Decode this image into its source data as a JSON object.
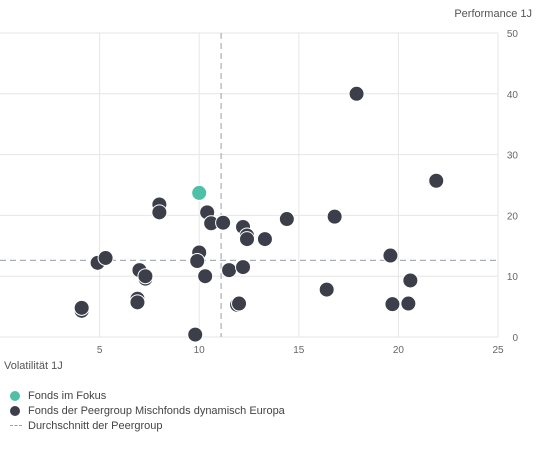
{
  "chart_data": {
    "type": "scatter",
    "title": "",
    "xlabel": "Volatilität 1J",
    "ylabel": "Performance 1J",
    "xlim": [
      0,
      25
    ],
    "ylim": [
      0,
      50
    ],
    "xticks": [
      "5",
      "10",
      "15",
      "20",
      "25"
    ],
    "yticks": [
      "0",
      "10",
      "20",
      "30",
      "40",
      "50"
    ],
    "grid": true,
    "legend_position": "bottom-left",
    "colors": {
      "focus": "#4dc0a5",
      "peer": "#3c3f4a",
      "average": "#a9b0b9",
      "grid": "#e6e6e6"
    },
    "series": [
      {
        "name": "Fonds im Fokus",
        "points": [
          {
            "x": 10.0,
            "y": 23.7
          }
        ]
      },
      {
        "name": "Fonds der Peergroup Mischfonds dynamisch Europa",
        "points": [
          {
            "x": 17.9,
            "y": 40.0
          },
          {
            "x": 21.9,
            "y": 25.7
          },
          {
            "x": 8.0,
            "y": 21.8
          },
          {
            "x": 8.0,
            "y": 20.5
          },
          {
            "x": 10.4,
            "y": 20.5
          },
          {
            "x": 10.6,
            "y": 18.7
          },
          {
            "x": 11.2,
            "y": 18.8
          },
          {
            "x": 12.2,
            "y": 18.1
          },
          {
            "x": 12.4,
            "y": 16.7
          },
          {
            "x": 12.4,
            "y": 16.1
          },
          {
            "x": 13.3,
            "y": 16.1
          },
          {
            "x": 14.4,
            "y": 19.4
          },
          {
            "x": 16.8,
            "y": 19.8
          },
          {
            "x": 19.6,
            "y": 13.4
          },
          {
            "x": 20.6,
            "y": 9.3
          },
          {
            "x": 19.7,
            "y": 5.4
          },
          {
            "x": 20.5,
            "y": 5.5
          },
          {
            "x": 16.4,
            "y": 7.8
          },
          {
            "x": 4.9,
            "y": 12.2
          },
          {
            "x": 5.3,
            "y": 13.0
          },
          {
            "x": 7.0,
            "y": 11.0
          },
          {
            "x": 7.3,
            "y": 9.6
          },
          {
            "x": 7.3,
            "y": 10.0
          },
          {
            "x": 6.9,
            "y": 6.3
          },
          {
            "x": 6.9,
            "y": 5.7
          },
          {
            "x": 4.1,
            "y": 4.3
          },
          {
            "x": 4.1,
            "y": 4.8
          },
          {
            "x": 9.8,
            "y": 0.4
          },
          {
            "x": 10.0,
            "y": 13.9
          },
          {
            "x": 9.9,
            "y": 12.5
          },
          {
            "x": 10.3,
            "y": 10.0
          },
          {
            "x": 11.5,
            "y": 11.0
          },
          {
            "x": 12.2,
            "y": 11.5
          },
          {
            "x": 11.9,
            "y": 5.3
          },
          {
            "x": 12.0,
            "y": 5.5
          }
        ]
      }
    ],
    "average": {
      "name": "Durchschnitt der Peergroup",
      "x": 11.1,
      "y": 12.6
    }
  }
}
